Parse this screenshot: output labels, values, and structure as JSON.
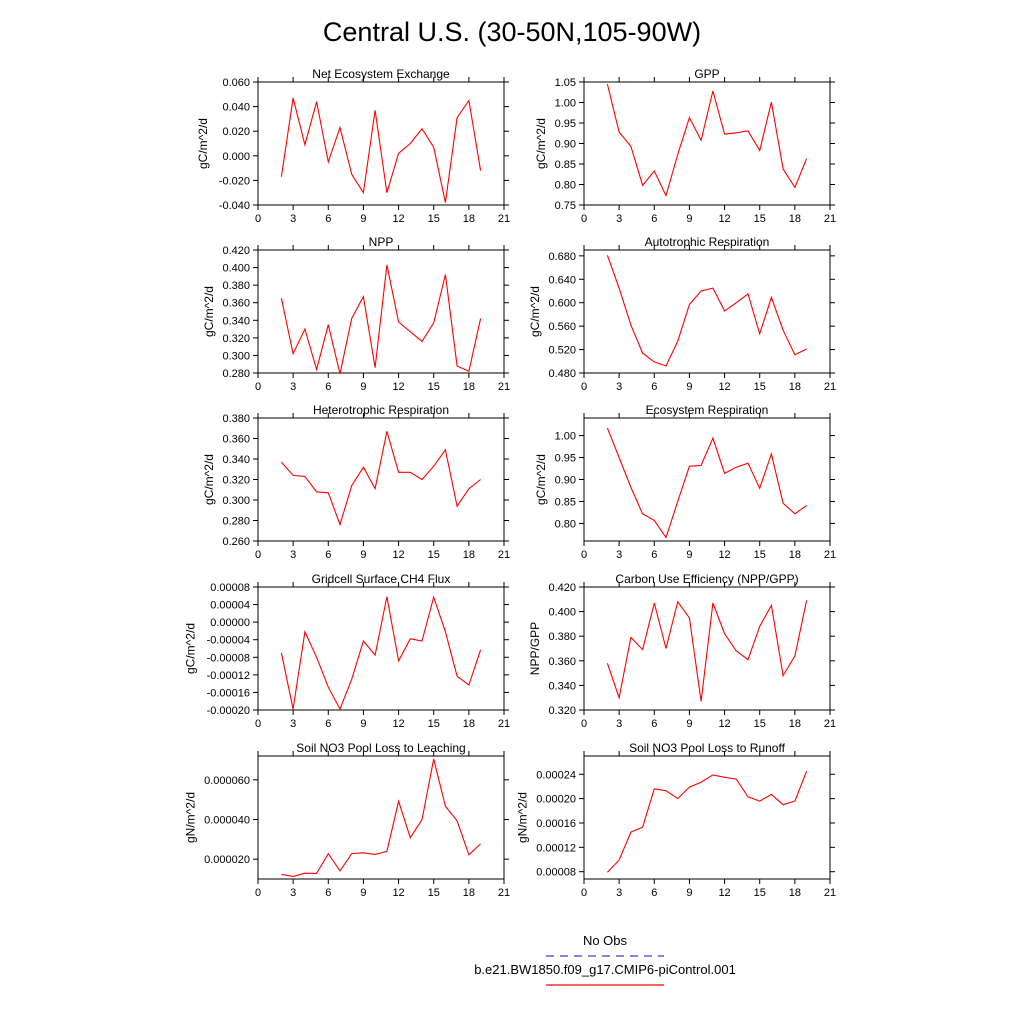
{
  "title": "Central U.S. (30-50N,105-90W)",
  "line_color": "#ff0000",
  "obs_color": "#3b3bd1",
  "legend": {
    "obs_label": "No Obs",
    "model_label": "b.e21.BW1850.f09_g17.CMIP6-piControl.001"
  },
  "chart_data": [
    {
      "type": "line",
      "title": "Net Ecosystem Exchange",
      "ylabel": "gC/m^2/d",
      "xlim": [
        0,
        21
      ],
      "xticks": [
        "0",
        "3",
        "6",
        "9",
        "12",
        "15",
        "18",
        "21"
      ],
      "ylim": [
        -0.04,
        0.06
      ],
      "yticks": [
        "-0.040",
        "-0.020",
        "0.000",
        "0.020",
        "0.040",
        "0.060"
      ],
      "x": [
        2,
        3,
        4,
        5,
        6,
        7,
        8,
        9,
        10,
        11,
        12,
        13,
        14,
        15,
        16,
        17,
        18,
        19
      ],
      "y": [
        -0.017,
        0.047,
        0.009,
        0.044,
        -0.005,
        0.023,
        -0.015,
        -0.03,
        0.037,
        -0.03,
        0.002,
        0.01,
        0.022,
        0.007,
        -0.038,
        0.031,
        0.045,
        -0.012
      ]
    },
    {
      "type": "line",
      "title": "GPP",
      "ylabel": "gC/m^2/d",
      "xlim": [
        0,
        21
      ],
      "xticks": [
        "0",
        "3",
        "6",
        "9",
        "12",
        "15",
        "18",
        "21"
      ],
      "ylim": [
        0.75,
        1.05
      ],
      "yticks": [
        "0.75",
        "0.80",
        "0.85",
        "0.90",
        "0.95",
        "1.00",
        "1.05"
      ],
      "x": [
        2,
        3,
        4,
        5,
        6,
        7,
        8,
        9,
        10,
        11,
        12,
        13,
        14,
        15,
        16,
        17,
        18,
        19
      ],
      "y": [
        1.045,
        0.928,
        0.893,
        0.798,
        0.833,
        0.773,
        0.873,
        0.963,
        0.908,
        1.028,
        0.923,
        0.926,
        0.931,
        0.883,
        1.001,
        0.838,
        0.793,
        0.863
      ]
    },
    {
      "type": "line",
      "title": "NPP",
      "ylabel": "gC/m^2/d",
      "xlim": [
        0,
        21
      ],
      "xticks": [
        "0",
        "3",
        "6",
        "9",
        "12",
        "15",
        "18",
        "21"
      ],
      "ylim": [
        0.28,
        0.42
      ],
      "yticks": [
        "0.280",
        "0.300",
        "0.320",
        "0.340",
        "0.360",
        "0.380",
        "0.400",
        "0.420"
      ],
      "x": [
        2,
        3,
        4,
        5,
        6,
        7,
        8,
        9,
        10,
        11,
        12,
        13,
        14,
        15,
        16,
        17,
        18,
        19
      ],
      "y": [
        0.365,
        0.302,
        0.33,
        0.284,
        0.335,
        0.279,
        0.342,
        0.367,
        0.286,
        0.403,
        0.338,
        0.327,
        0.316,
        0.337,
        0.392,
        0.288,
        0.282,
        0.342
      ]
    },
    {
      "type": "line",
      "title": "Autotrophic Respiration",
      "ylabel": "gC/m^2/d",
      "xlim": [
        0,
        21
      ],
      "xticks": [
        "0",
        "3",
        "6",
        "9",
        "12",
        "15",
        "18",
        "21"
      ],
      "ylim": [
        0.48,
        0.69
      ],
      "yticks": [
        "0.480",
        "0.520",
        "0.560",
        "0.600",
        "0.640",
        "0.680"
      ],
      "x": [
        2,
        3,
        4,
        5,
        6,
        7,
        8,
        9,
        10,
        11,
        12,
        13,
        14,
        15,
        16,
        17,
        18,
        19
      ],
      "y": [
        0.681,
        0.625,
        0.562,
        0.514,
        0.499,
        0.492,
        0.534,
        0.597,
        0.62,
        0.625,
        0.586,
        0.6,
        0.615,
        0.547,
        0.609,
        0.553,
        0.511,
        0.521
      ]
    },
    {
      "type": "line",
      "title": "Heterotrophic Respiration",
      "ylabel": "gC/m^2/d",
      "xlim": [
        0,
        21
      ],
      "xticks": [
        "0",
        "3",
        "6",
        "9",
        "12",
        "15",
        "18",
        "21"
      ],
      "ylim": [
        0.26,
        0.38
      ],
      "yticks": [
        "0.260",
        "0.280",
        "0.300",
        "0.320",
        "0.340",
        "0.360",
        "0.380"
      ],
      "x": [
        2,
        3,
        4,
        5,
        6,
        7,
        8,
        9,
        10,
        11,
        12,
        13,
        14,
        15,
        16,
        17,
        18,
        19
      ],
      "y": [
        0.337,
        0.324,
        0.323,
        0.308,
        0.307,
        0.276,
        0.314,
        0.332,
        0.311,
        0.367,
        0.327,
        0.327,
        0.32,
        0.333,
        0.349,
        0.294,
        0.311,
        0.32
      ]
    },
    {
      "type": "line",
      "title": "Ecosystem Respiration",
      "ylabel": "gC/m^2/d",
      "xlim": [
        0,
        21
      ],
      "xticks": [
        "0",
        "3",
        "6",
        "9",
        "12",
        "15",
        "18",
        "21"
      ],
      "ylim": [
        0.76,
        1.04
      ],
      "yticks": [
        "0.80",
        "0.85",
        "0.90",
        "0.95",
        "1.00"
      ],
      "x": [
        2,
        3,
        4,
        5,
        6,
        7,
        8,
        9,
        10,
        11,
        12,
        13,
        14,
        15,
        16,
        17,
        18,
        19
      ],
      "y": [
        1.017,
        0.95,
        0.882,
        0.822,
        0.807,
        0.768,
        0.85,
        0.93,
        0.932,
        0.994,
        0.914,
        0.928,
        0.937,
        0.88,
        0.958,
        0.846,
        0.822,
        0.841
      ]
    },
    {
      "type": "line",
      "title": "Gridcell Surface CH4 Flux",
      "ylabel": "gC/m^2/d",
      "xlim": [
        0,
        21
      ],
      "xticks": [
        "0",
        "3",
        "6",
        "9",
        "12",
        "15",
        "18",
        "21"
      ],
      "ylim": [
        -0.0002,
        8e-05
      ],
      "yticks": [
        "-0.00020",
        "-0.00016",
        "-0.00012",
        "-0.00008",
        "-0.00004",
        "0.00000",
        "0.00004",
        "0.00008"
      ],
      "x": [
        2,
        3,
        4,
        5,
        6,
        7,
        8,
        9,
        10,
        11,
        12,
        13,
        14,
        15,
        16,
        17,
        18,
        19
      ],
      "y": [
        -7e-05,
        -0.000198,
        -2.2e-05,
        -8e-05,
        -0.000148,
        -0.000198,
        -0.00013,
        -4.3e-05,
        -7.5e-05,
        5.8e-05,
        -8.8e-05,
        -3.8e-05,
        -4.3e-05,
        5.7e-05,
        -2.2e-05,
        -0.000123,
        -0.000143,
        -6.3e-05
      ]
    },
    {
      "type": "line",
      "title": "Carbon Use Efficiency (NPP/GPP)",
      "ylabel": "NPP/GPP",
      "xlim": [
        0,
        21
      ],
      "xticks": [
        "0",
        "3",
        "6",
        "9",
        "12",
        "15",
        "18",
        "21"
      ],
      "ylim": [
        0.32,
        0.42
      ],
      "yticks": [
        "0.320",
        "0.340",
        "0.360",
        "0.380",
        "0.400",
        "0.420"
      ],
      "x": [
        2,
        3,
        4,
        5,
        6,
        7,
        8,
        9,
        10,
        11,
        12,
        13,
        14,
        15,
        16,
        17,
        18,
        19
      ],
      "y": [
        0.358,
        0.33,
        0.379,
        0.369,
        0.407,
        0.37,
        0.408,
        0.395,
        0.327,
        0.407,
        0.382,
        0.368,
        0.361,
        0.388,
        0.405,
        0.348,
        0.364,
        0.409
      ]
    },
    {
      "type": "line",
      "title": "Soil NO3 Pool Loss to Leaching",
      "ylabel": "gN/m^2/d",
      "xlim": [
        0,
        21
      ],
      "xticks": [
        "0",
        "3",
        "6",
        "9",
        "12",
        "15",
        "18",
        "21"
      ],
      "ylim": [
        1e-05,
        7.2e-05
      ],
      "yticks": [
        "0.000020",
        "0.000040",
        "0.000060"
      ],
      "x": [
        2,
        3,
        4,
        5,
        6,
        7,
        8,
        9,
        10,
        11,
        12,
        13,
        14,
        15,
        16,
        17,
        18,
        19
      ],
      "y": [
        1.23e-05,
        1.13e-05,
        1.29e-05,
        1.28e-05,
        2.28e-05,
        1.41e-05,
        2.28e-05,
        2.32e-05,
        2.24e-05,
        2.39e-05,
        4.92e-05,
        3.08e-05,
        3.99e-05,
        7.05e-05,
        4.67e-05,
        3.93e-05,
        2.22e-05,
        2.77e-05
      ]
    },
    {
      "type": "line",
      "title": "Soil NO3 Pool Loss to Runoff",
      "ylabel": "gN/m^2/d",
      "xlim": [
        0,
        21
      ],
      "xticks": [
        "0",
        "3",
        "6",
        "9",
        "12",
        "15",
        "18",
        "21"
      ],
      "ylim": [
        6.8e-05,
        0.00027
      ],
      "yticks": [
        "0.00008",
        "0.00012",
        "0.00016",
        "0.00020",
        "0.00024"
      ],
      "x": [
        2,
        3,
        4,
        5,
        6,
        7,
        8,
        9,
        10,
        11,
        12,
        13,
        14,
        15,
        16,
        17,
        18,
        19
      ],
      "y": [
        7.9e-05,
        9.9e-05,
        0.000145,
        0.000153,
        0.000216,
        0.000213,
        0.0002,
        0.000219,
        0.000227,
        0.000239,
        0.000235,
        0.000232,
        0.000203,
        0.000196,
        0.000207,
        0.00019,
        0.000196,
        0.000245
      ]
    }
  ]
}
